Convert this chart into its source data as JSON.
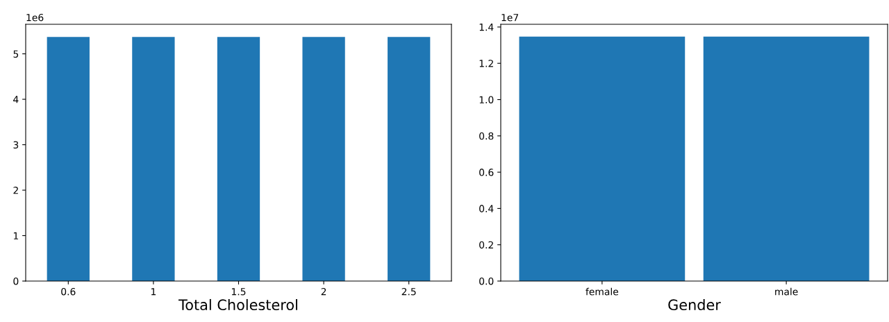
{
  "chart_data": [
    {
      "type": "bar",
      "xlabel": "Total Cholesterol",
      "categories": [
        "0.6",
        "1",
        "1.5",
        "2",
        "2.5"
      ],
      "values": [
        5.37,
        5.37,
        5.37,
        5.37,
        5.37
      ],
      "color": "#1f77b4",
      "ylim": [
        0,
        5.65
      ],
      "yticks": [
        0,
        1,
        2,
        3,
        4,
        5
      ],
      "annotations": [
        "1e6"
      ],
      "grid": false,
      "legend": false
    },
    {
      "type": "bar",
      "xlabel": "Gender",
      "categories": [
        "female",
        "male"
      ],
      "values": [
        1.347,
        1.347
      ],
      "color": "#1f77b4",
      "ylim": [
        0,
        1.415
      ],
      "yticks": [
        {
          "value": 0,
          "label": "0.0"
        },
        {
          "value": 0.2,
          "label": "0.2"
        },
        {
          "value": 0.4,
          "label": "0.4"
        },
        {
          "value": 0.6,
          "label": "0.6"
        },
        {
          "value": 0.8,
          "label": "0.8"
        },
        {
          "value": 1.0,
          "label": "1.0"
        },
        {
          "value": 1.2,
          "label": "1.2"
        },
        {
          "value": 1.4,
          "label": "1.4"
        }
      ],
      "annotations": [
        "1e7"
      ],
      "grid": false,
      "legend": false
    }
  ]
}
